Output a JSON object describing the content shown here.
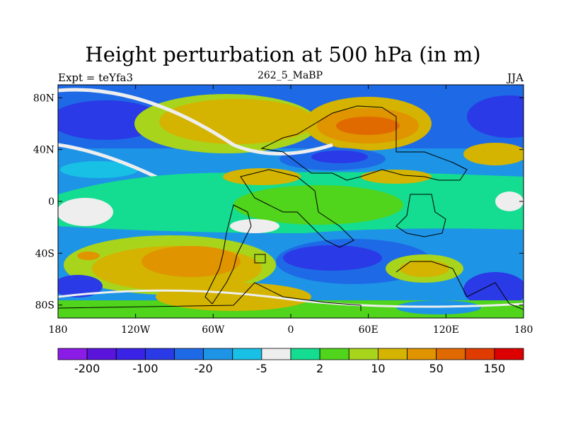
{
  "title": "Height perturbation at 500 hPa (in m)",
  "left_label": "Expt = teYfa3",
  "center_label": "262_5_MaBP",
  "right_label": "JJA",
  "map": {
    "type": "filled-contour",
    "projection": "cylindrical-equidistant",
    "lon_range": [
      -180,
      180
    ],
    "lat_range": [
      -90,
      90
    ],
    "x_ticks": [
      {
        "value": -180,
        "label": "180"
      },
      {
        "value": -120,
        "label": "120W"
      },
      {
        "value": -60,
        "label": "60W"
      },
      {
        "value": 0,
        "label": "0"
      },
      {
        "value": 60,
        "label": "60E"
      },
      {
        "value": 120,
        "label": "120E"
      },
      {
        "value": 180,
        "label": "180"
      }
    ],
    "y_ticks": [
      {
        "value": 80,
        "label": "80N"
      },
      {
        "value": 40,
        "label": "40N"
      },
      {
        "value": 0,
        "label": "0"
      },
      {
        "value": -40,
        "label": "40S"
      },
      {
        "value": -80,
        "label": "80S"
      }
    ],
    "regions": [
      {
        "name": "high-lat-north-low",
        "color": "#1c5ee6"
      },
      {
        "name": "north-europe-high",
        "color": "#e0a000"
      },
      {
        "name": "asia-high",
        "color": "#e06a00"
      },
      {
        "name": "tropics",
        "color": "#12d884"
      },
      {
        "name": "south-pacific-high",
        "color": "#e0a000"
      },
      {
        "name": "southern-ocean-low",
        "color": "#1c5ee6"
      }
    ]
  },
  "colorbar": {
    "colors": [
      "#8a1ce6",
      "#5a14dc",
      "#3a22e6",
      "#2a3ae6",
      "#1e6ae6",
      "#1e94e6",
      "#18c0e6",
      "#eeeeee",
      "#14dc90",
      "#50d41c",
      "#a8d41c",
      "#d4b400",
      "#e09400",
      "#e06a00",
      "#e03c00",
      "#dc0000"
    ],
    "labels": [
      {
        "index": 1,
        "label": "-200"
      },
      {
        "index": 3,
        "label": "-100"
      },
      {
        "index": 5,
        "label": "-20"
      },
      {
        "index": 7,
        "label": "-5"
      },
      {
        "index": 9,
        "label": "2"
      },
      {
        "index": 11,
        "label": "10"
      },
      {
        "index": 13,
        "label": "50"
      },
      {
        "index": 15,
        "label": "150"
      }
    ]
  }
}
